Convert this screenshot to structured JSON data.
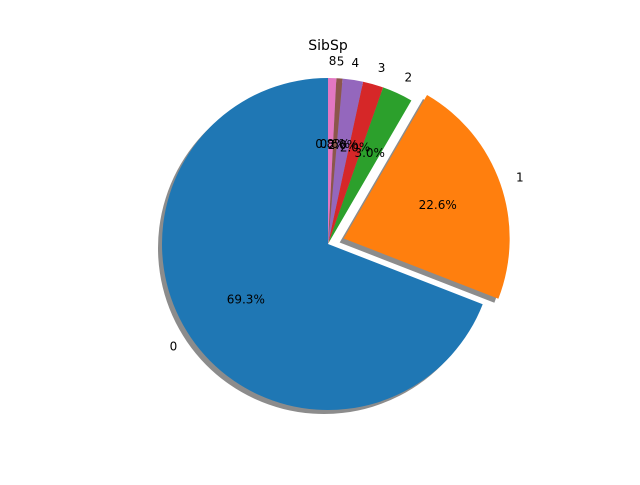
{
  "chart_data": {
    "type": "pie",
    "title": "SibSp",
    "categories": [
      "0",
      "1",
      "2",
      "3",
      "4",
      "5",
      "8"
    ],
    "values": [
      69.3,
      22.6,
      3.0,
      2.0,
      2.0,
      0.6,
      0.8
    ],
    "value_labels": [
      "69.3%",
      "22.6%",
      "3.0%",
      "2.0%",
      "2.0%",
      "0.6%",
      "0.8%"
    ],
    "colors": [
      "#1f77b4",
      "#ff7f0e",
      "#2ca02c",
      "#d62728",
      "#9467bd",
      "#8c564b",
      "#e377c2"
    ],
    "start_angle_deg": 90,
    "explode": [
      0,
      0.1,
      0,
      0,
      0,
      0,
      0
    ],
    "shadow": true,
    "legend": "none"
  }
}
